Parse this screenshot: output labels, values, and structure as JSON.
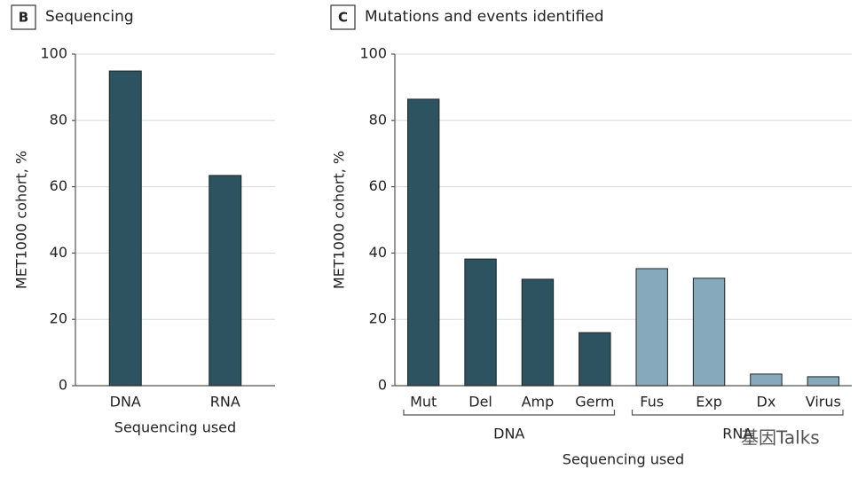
{
  "watermark": "基因Talks",
  "chart_data": [
    {
      "type": "bar",
      "panel": "B",
      "title": "Sequencing",
      "ylabel": "MET1000 cohort, %",
      "xlabel": "Sequencing used",
      "categories": [
        "DNA",
        "RNA"
      ],
      "values": [
        94.9,
        63.4
      ],
      "color": "#2d5361",
      "ylim": [
        0,
        100
      ],
      "yticks": [
        0,
        20,
        40,
        60,
        80,
        100
      ],
      "grid": true
    },
    {
      "type": "bar",
      "panel": "C",
      "title": "Mutations and events identified",
      "ylabel": "MET1000 cohort, %",
      "xlabel": "Sequencing used",
      "categories": [
        "Mut",
        "Del",
        "Amp",
        "Germ",
        "Fus",
        "Exp",
        "Dx",
        "Virus"
      ],
      "values": [
        86.4,
        38.2,
        32.1,
        16.0,
        35.3,
        32.4,
        3.5,
        2.7
      ],
      "groups": [
        {
          "name": "DNA",
          "count": 4,
          "color": "#2d5361"
        },
        {
          "name": "RNA",
          "count": 4,
          "color": "#86a9bb"
        }
      ],
      "ylim": [
        0,
        100
      ],
      "yticks": [
        0,
        20,
        40,
        60,
        80,
        100
      ],
      "grid": true
    }
  ]
}
